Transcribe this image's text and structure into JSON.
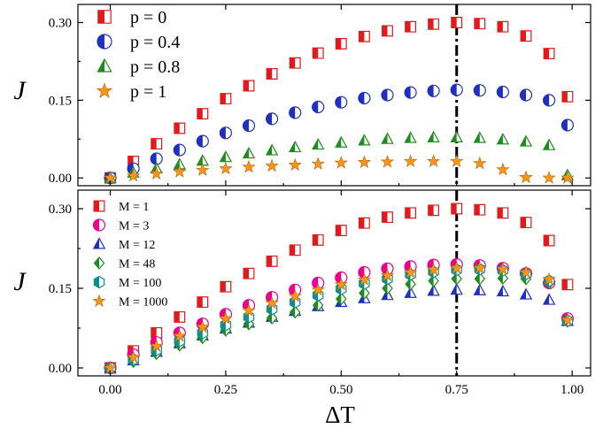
{
  "chart_data": [
    {
      "type": "scatter",
      "ylabel": "J",
      "xlim": [
        -0.07,
        1.04
      ],
      "ylim": [
        -0.015,
        0.335
      ],
      "yticks": [
        "0.00",
        "0.15",
        "0.30"
      ],
      "ytick_values": [
        0.0,
        0.15,
        0.3
      ],
      "legend_position": "top-left",
      "reference_line_x": 0.75,
      "series": [
        {
          "name": "p = 0",
          "legend_label": "p = 0",
          "marker": "square-half",
          "color": "#e31a1c",
          "x": [
            0.0,
            0.05,
            0.1,
            0.15,
            0.2,
            0.25,
            0.3,
            0.35,
            0.4,
            0.45,
            0.5,
            0.55,
            0.6,
            0.65,
            0.7,
            0.75,
            0.8,
            0.85,
            0.9,
            0.95,
            0.99
          ],
          "y": [
            0.0,
            0.032,
            0.066,
            0.096,
            0.124,
            0.153,
            0.178,
            0.201,
            0.222,
            0.241,
            0.259,
            0.273,
            0.284,
            0.292,
            0.297,
            0.3,
            0.298,
            0.292,
            0.274,
            0.24,
            0.157
          ]
        },
        {
          "name": "p = 0.4",
          "legend_label": "p = 0.4",
          "marker": "circle-half",
          "color": "#1f2fbf",
          "x": [
            0.0,
            0.05,
            0.1,
            0.15,
            0.2,
            0.25,
            0.3,
            0.35,
            0.4,
            0.45,
            0.5,
            0.55,
            0.6,
            0.65,
            0.7,
            0.75,
            0.8,
            0.85,
            0.9,
            0.95,
            0.99
          ],
          "y": [
            0.0,
            0.018,
            0.037,
            0.054,
            0.071,
            0.087,
            0.101,
            0.114,
            0.126,
            0.137,
            0.146,
            0.154,
            0.16,
            0.165,
            0.168,
            0.17,
            0.169,
            0.166,
            0.16,
            0.15,
            0.102
          ]
        },
        {
          "name": "p = 0.8",
          "legend_label": "p = 0.8",
          "marker": "triangle-half",
          "color": "#1e8c1e",
          "x": [
            0.0,
            0.05,
            0.1,
            0.15,
            0.2,
            0.25,
            0.3,
            0.35,
            0.4,
            0.45,
            0.5,
            0.55,
            0.6,
            0.65,
            0.7,
            0.75,
            0.8,
            0.85,
            0.9,
            0.95,
            0.99
          ],
          "y": [
            0.0,
            0.01,
            0.018,
            0.026,
            0.033,
            0.04,
            0.047,
            0.053,
            0.059,
            0.064,
            0.068,
            0.072,
            0.075,
            0.077,
            0.078,
            0.078,
            0.077,
            0.074,
            0.07,
            0.063,
            0.005
          ]
        },
        {
          "name": "p = 1",
          "legend_label": "p = 1",
          "marker": "star",
          "color": "#f7941d",
          "x": [
            0.0,
            0.05,
            0.1,
            0.15,
            0.2,
            0.25,
            0.3,
            0.35,
            0.4,
            0.45,
            0.5,
            0.55,
            0.6,
            0.65,
            0.7,
            0.75,
            0.8,
            0.85,
            0.9,
            0.95,
            0.99
          ],
          "y": [
            0.0,
            0.004,
            0.008,
            0.012,
            0.015,
            0.018,
            0.021,
            0.023,
            0.025,
            0.027,
            0.029,
            0.03,
            0.031,
            0.032,
            0.032,
            0.032,
            0.028,
            0.016,
            0.001,
            0.0,
            0.0
          ]
        }
      ]
    },
    {
      "type": "scatter",
      "xlabel": "ΔT",
      "ylabel": "J",
      "xlim": [
        -0.07,
        1.04
      ],
      "ylim": [
        -0.015,
        0.335
      ],
      "xticks": [
        "0.00",
        "0.25",
        "0.50",
        "0.75",
        "1.00"
      ],
      "xtick_values": [
        0.0,
        0.25,
        0.5,
        0.75,
        1.0
      ],
      "yticks": [
        "0.00",
        "0.15",
        "0.30"
      ],
      "ytick_values": [
        0.0,
        0.15,
        0.3
      ],
      "legend_position": "top-left",
      "reference_line_x": 0.75,
      "series": [
        {
          "name": "M = 1",
          "legend_label": "M = 1",
          "marker": "square-half",
          "color": "#e31a1c",
          "x": [
            0.0,
            0.05,
            0.1,
            0.15,
            0.2,
            0.25,
            0.3,
            0.35,
            0.4,
            0.45,
            0.5,
            0.55,
            0.6,
            0.65,
            0.7,
            0.75,
            0.8,
            0.85,
            0.9,
            0.95,
            0.99
          ],
          "y": [
            0.0,
            0.032,
            0.066,
            0.096,
            0.124,
            0.153,
            0.178,
            0.201,
            0.222,
            0.241,
            0.259,
            0.273,
            0.284,
            0.292,
            0.297,
            0.3,
            0.298,
            0.292,
            0.274,
            0.24,
            0.157
          ]
        },
        {
          "name": "M = 3",
          "legend_label": "M = 3",
          "marker": "circle-half",
          "color": "#ec008c",
          "x": [
            0.0,
            0.05,
            0.1,
            0.15,
            0.2,
            0.25,
            0.3,
            0.35,
            0.4,
            0.45,
            0.5,
            0.55,
            0.6,
            0.65,
            0.7,
            0.75,
            0.8,
            0.85,
            0.9,
            0.95,
            0.99
          ],
          "y": [
            0.0,
            0.025,
            0.048,
            0.066,
            0.083,
            0.101,
            0.118,
            0.133,
            0.147,
            0.16,
            0.17,
            0.18,
            0.187,
            0.191,
            0.194,
            0.195,
            0.193,
            0.188,
            0.178,
            0.16,
            0.093
          ]
        },
        {
          "name": "M = 12",
          "legend_label": "M = 12",
          "marker": "triangle-half",
          "color": "#1f2fbf",
          "x": [
            0.0,
            0.05,
            0.1,
            0.15,
            0.2,
            0.25,
            0.3,
            0.35,
            0.4,
            0.45,
            0.5,
            0.55,
            0.6,
            0.65,
            0.7,
            0.75,
            0.8,
            0.85,
            0.9,
            0.95,
            0.99
          ],
          "y": [
            0.0,
            0.014,
            0.03,
            0.046,
            0.061,
            0.074,
            0.085,
            0.096,
            0.107,
            0.116,
            0.124,
            0.131,
            0.137,
            0.141,
            0.145,
            0.147,
            0.146,
            0.144,
            0.138,
            0.128,
            0.088
          ]
        },
        {
          "name": "M = 48",
          "legend_label": "M = 48",
          "marker": "diamond-half",
          "color": "#1e8c1e",
          "x": [
            0.0,
            0.05,
            0.1,
            0.15,
            0.2,
            0.25,
            0.3,
            0.35,
            0.4,
            0.45,
            0.5,
            0.55,
            0.6,
            0.65,
            0.7,
            0.75,
            0.8,
            0.85,
            0.9,
            0.95,
            0.99
          ],
          "y": [
            0.0,
            0.012,
            0.027,
            0.043,
            0.057,
            0.071,
            0.083,
            0.094,
            0.105,
            0.118,
            0.13,
            0.141,
            0.15,
            0.158,
            0.164,
            0.168,
            0.168,
            0.169,
            0.168,
            0.16,
            0.088
          ]
        },
        {
          "name": "M = 100",
          "legend_label": "M = 100",
          "marker": "hexagon-half",
          "color": "#0e8f8f",
          "x": [
            0.0,
            0.05,
            0.1,
            0.15,
            0.2,
            0.25,
            0.3,
            0.35,
            0.4,
            0.45,
            0.5,
            0.55,
            0.6,
            0.65,
            0.7,
            0.75,
            0.8,
            0.85,
            0.9,
            0.95,
            0.99
          ],
          "y": [
            0.0,
            0.016,
            0.034,
            0.051,
            0.066,
            0.081,
            0.096,
            0.111,
            0.124,
            0.137,
            0.149,
            0.159,
            0.168,
            0.176,
            0.181,
            0.185,
            0.186,
            0.184,
            0.177,
            0.164,
            0.089
          ]
        },
        {
          "name": "M = 1000",
          "legend_label": "M = 1000",
          "marker": "star",
          "color": "#f7941d",
          "x": [
            0.0,
            0.05,
            0.1,
            0.15,
            0.2,
            0.25,
            0.3,
            0.35,
            0.4,
            0.45,
            0.5,
            0.55,
            0.6,
            0.65,
            0.7,
            0.75,
            0.8,
            0.85,
            0.9,
            0.95,
            0.99
          ],
          "y": [
            0.0,
            0.02,
            0.041,
            0.06,
            0.077,
            0.093,
            0.108,
            0.122,
            0.135,
            0.147,
            0.157,
            0.166,
            0.174,
            0.18,
            0.185,
            0.188,
            0.188,
            0.186,
            0.18,
            0.167,
            0.09
          ]
        }
      ]
    }
  ]
}
